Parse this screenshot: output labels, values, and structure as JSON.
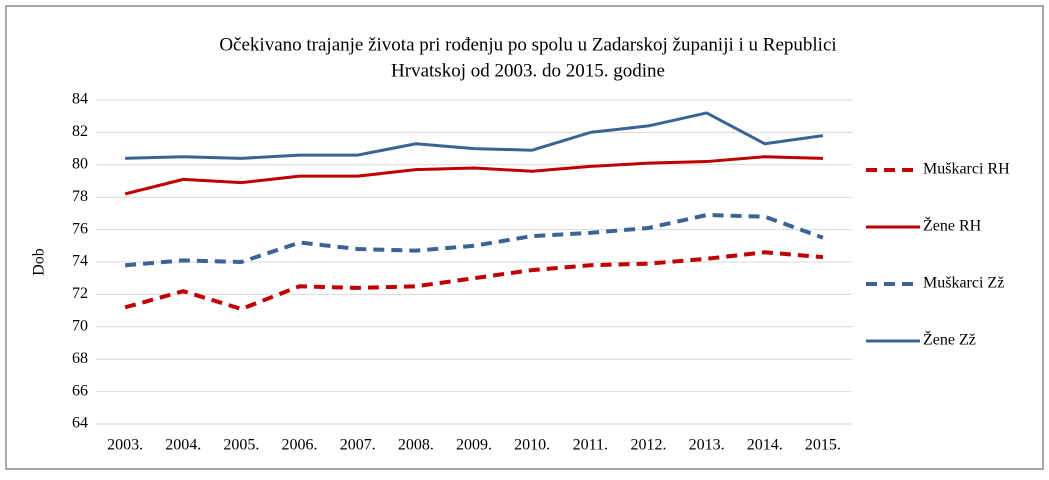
{
  "chart_data": {
    "type": "line",
    "title": [
      "Očekivano trajanje života pri rođenju po spolu u Zadarskoj županiji i u Republici",
      "Hrvatskoj od 2003.  do 2015. godine"
    ],
    "ylabel": "Dob",
    "categories": [
      "2003.",
      "2004.",
      "2005.",
      "2006.",
      "2007.",
      "2008.",
      "2009.",
      "2010.",
      "2011.",
      "2012.",
      "2013.",
      "2014.",
      "2015."
    ],
    "series": [
      {
        "name": "Muškarci RH",
        "color": "#c00000",
        "dashed": true,
        "values": [
          71.2,
          72.2,
          71.1,
          72.5,
          72.4,
          72.5,
          73.0,
          73.5,
          73.8,
          73.9,
          74.2,
          74.6,
          74.3
        ]
      },
      {
        "name": "Žene RH",
        "color": "#c00000",
        "dashed": false,
        "values": [
          78.2,
          79.1,
          78.9,
          79.3,
          79.3,
          79.7,
          79.8,
          79.6,
          79.9,
          80.1,
          80.2,
          80.5,
          80.4
        ]
      },
      {
        "name": "Muškarci Zž",
        "color": "#3b6495",
        "dashed": true,
        "values": [
          73.8,
          74.1,
          74.0,
          75.2,
          74.8,
          74.7,
          75.0,
          75.6,
          75.8,
          76.1,
          76.9,
          76.8,
          75.5
        ]
      },
      {
        "name": "Žene Zž",
        "color": "#3b6495",
        "dashed": false,
        "values": [
          80.4,
          80.5,
          80.4,
          80.6,
          80.6,
          81.3,
          81.0,
          80.9,
          82.0,
          82.4,
          83.2,
          81.3,
          81.8
        ]
      }
    ],
    "ylim": [
      64,
      84
    ],
    "yticks": [
      64,
      66,
      68,
      70,
      72,
      74,
      76,
      78,
      80,
      82,
      84
    ],
    "grid": true,
    "legend": "right"
  }
}
